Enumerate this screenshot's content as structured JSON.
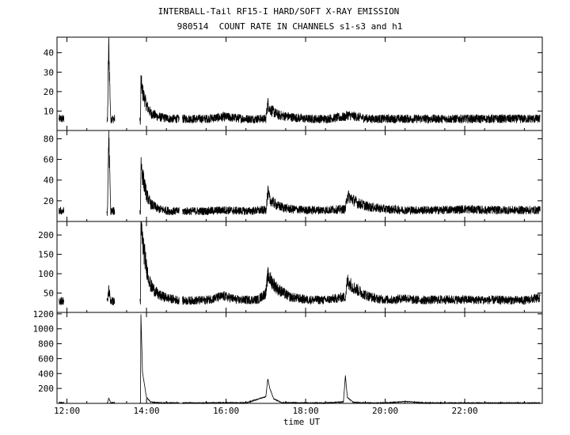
{
  "header": {
    "line1": "INTERBALL-Tail RF15-I HARD/SOFT X-RAY EMISSION",
    "line2": "980514  COUNT RATE IN CHANNELS s1-s3 and h1"
  },
  "chart_data": {
    "type": "line",
    "title": "INTERBALL-Tail RF15-I HARD/SOFT X-RAY EMISSION",
    "subtitle": "980514  COUNT RATE IN CHANNELS s1-s3 and h1",
    "xlabel": "time UT",
    "xlim": [
      11.75,
      23.95
    ],
    "x_ticks": [
      12,
      14,
      16,
      18,
      20,
      22
    ],
    "x_tick_labels": [
      "12:00",
      "14:00",
      "16:00",
      "18:00",
      "20:00",
      "22:00"
    ],
    "grid": false,
    "data_gaps_hours": [
      [
        11.93,
        13.0
      ],
      [
        13.2,
        13.83
      ],
      [
        14.82,
        14.9
      ]
    ],
    "panels": [
      {
        "ylim": [
          0,
          48
        ],
        "y_ticks": [
          10,
          20,
          30,
          40
        ],
        "series": [
          {
            "x": [
              11.8,
              11.9,
              13.02,
              13.05,
              13.1,
              13.2,
              13.85,
              13.86,
              13.9,
              14.0,
              14.1,
              14.3,
              14.6,
              14.82,
              14.9,
              15.5,
              15.95,
              16.5,
              17.0,
              17.05,
              17.1,
              17.3,
              17.6,
              18.0,
              18.5,
              19.0,
              19.05,
              19.3,
              19.6,
              20.0,
              20.5,
              21.0,
              21.5,
              22.0,
              22.5,
              23.0,
              23.5,
              23.9
            ],
            "y": [
              6,
              6,
              5,
              45,
              6,
              6,
              5,
              25,
              20,
              13,
              9,
              7,
              6,
              6,
              6,
              6,
              7,
              6,
              6,
              14,
              11,
              8,
              7,
              6,
              6,
              7,
              8,
              7,
              6,
              6,
              6,
              6,
              6,
              6,
              6,
              6,
              6,
              6
            ]
          }
        ]
      },
      {
        "ylim": [
          0,
          88
        ],
        "y_ticks": [
          20,
          40,
          60,
          80
        ],
        "series": [
          {
            "x": [
              11.8,
              11.9,
              13.02,
              13.05,
              13.1,
              13.2,
              13.85,
              13.86,
              13.9,
              14.0,
              14.1,
              14.3,
              14.6,
              14.82,
              14.9,
              15.5,
              15.95,
              16.5,
              17.0,
              17.05,
              17.1,
              17.3,
              17.6,
              18.0,
              18.5,
              19.0,
              19.05,
              19.3,
              19.6,
              20.0,
              20.5,
              21.0,
              21.5,
              22.0,
              22.5,
              23.0,
              23.5,
              23.9
            ],
            "y": [
              10,
              10,
              9,
              86,
              10,
              10,
              9,
              57,
              45,
              26,
              17,
              12,
              10,
              10,
              10,
              10,
              11,
              10,
              11,
              28,
              21,
              15,
              12,
              11,
              11,
              12,
              25,
              18,
              14,
              12,
              11,
              11,
              11,
              12,
              11,
              11,
              11,
              11
            ]
          }
        ]
      },
      {
        "ylim": [
          0,
          235
        ],
        "y_ticks": [
          50,
          100,
          150,
          200
        ],
        "series": [
          {
            "x": [
              11.8,
              11.9,
              13.02,
              13.05,
              13.1,
              13.2,
              13.85,
              13.86,
              13.9,
              14.0,
              14.1,
              14.3,
              14.6,
              14.82,
              14.9,
              15.5,
              15.95,
              16.3,
              16.8,
              17.0,
              17.05,
              17.15,
              17.3,
              17.6,
              18.0,
              18.5,
              19.0,
              19.05,
              19.2,
              19.5,
              19.8,
              20.2,
              20.5,
              20.7,
              21.0,
              21.5,
              22.0,
              22.5,
              23.0,
              23.5,
              23.9
            ],
            "y": [
              30,
              30,
              28,
              60,
              30,
              28,
              30,
              225,
              185,
              115,
              70,
              45,
              35,
              32,
              30,
              32,
              42,
              32,
              33,
              50,
              95,
              80,
              60,
              40,
              33,
              32,
              40,
              82,
              65,
              45,
              35,
              32,
              38,
              32,
              32,
              33,
              33,
              32,
              32,
              31,
              38
            ]
          }
        ]
      },
      {
        "ylim": [
          0,
          1220
        ],
        "y_ticks": [
          200,
          400,
          600,
          800,
          1000,
          1200
        ],
        "series": [
          {
            "x": [
              11.8,
              11.9,
              13.02,
              13.05,
              13.1,
              13.2,
              13.85,
              13.86,
              13.9,
              14.0,
              14.1,
              14.3,
              14.6,
              14.82,
              14.9,
              15.5,
              16.0,
              16.5,
              17.0,
              17.05,
              17.1,
              17.2,
              17.4,
              18.0,
              18.5,
              18.95,
              19.0,
              19.05,
              19.2,
              19.5,
              20.0,
              20.5,
              21.0,
              21.5,
              22.0,
              22.5,
              23.0,
              23.5,
              23.9
            ],
            "y": [
              10,
              10,
              8,
              70,
              10,
              10,
              8,
              1190,
              420,
              80,
              20,
              8,
              6,
              6,
              6,
              6,
              10,
              6,
              90,
              330,
              200,
              60,
              10,
              6,
              6,
              20,
              370,
              80,
              15,
              6,
              6,
              25,
              6,
              6,
              6,
              6,
              6,
              6,
              6
            ]
          }
        ]
      }
    ]
  }
}
